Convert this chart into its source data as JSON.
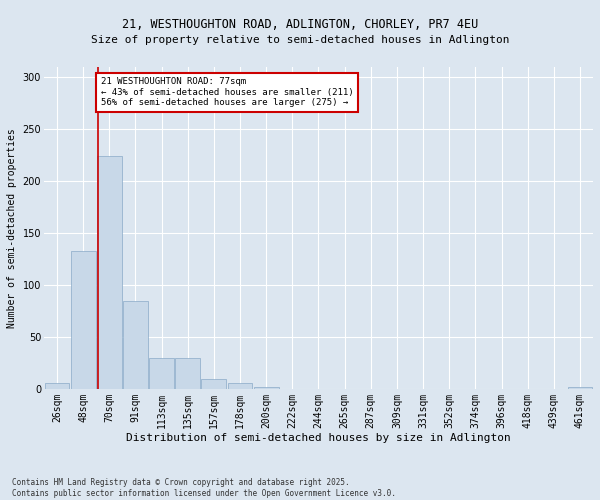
{
  "title_line1": "21, WESTHOUGHTON ROAD, ADLINGTON, CHORLEY, PR7 4EU",
  "title_line2": "Size of property relative to semi-detached houses in Adlington",
  "xlabel": "Distribution of semi-detached houses by size in Adlington",
  "ylabel": "Number of semi-detached properties",
  "bins": [
    "26sqm",
    "48sqm",
    "70sqm",
    "91sqm",
    "113sqm",
    "135sqm",
    "157sqm",
    "178sqm",
    "200sqm",
    "222sqm",
    "244sqm",
    "265sqm",
    "287sqm",
    "309sqm",
    "331sqm",
    "352sqm",
    "374sqm",
    "396sqm",
    "418sqm",
    "439sqm",
    "461sqm"
  ],
  "bar_values": [
    6,
    133,
    224,
    85,
    30,
    30,
    10,
    6,
    2,
    0,
    0,
    0,
    0,
    0,
    0,
    0,
    0,
    0,
    0,
    0,
    2
  ],
  "bar_color": "#c8d8e8",
  "bar_edge_color": "#8aaac8",
  "property_bin_index": 2,
  "vline_x_offset": -0.45,
  "annotation_title": "21 WESTHOUGHTON ROAD: 77sqm",
  "annotation_line2": "← 43% of semi-detached houses are smaller (211)",
  "annotation_line3": "56% of semi-detached houses are larger (275) →",
  "annotation_box_color": "#ffffff",
  "annotation_box_edge": "#cc0000",
  "vline_color": "#cc0000",
  "ylim": [
    0,
    310
  ],
  "yticks": [
    0,
    50,
    100,
    150,
    200,
    250,
    300
  ],
  "background_color": "#dce6f0",
  "grid_color": "#ffffff",
  "footer_line1": "Contains HM Land Registry data © Crown copyright and database right 2025.",
  "footer_line2": "Contains public sector information licensed under the Open Government Licence v3.0.",
  "title_fontsize": 8.5,
  "subtitle_fontsize": 8,
  "ylabel_fontsize": 7,
  "xlabel_fontsize": 8,
  "tick_fontsize": 7,
  "footer_fontsize": 5.5,
  "ann_fontsize": 6.5
}
